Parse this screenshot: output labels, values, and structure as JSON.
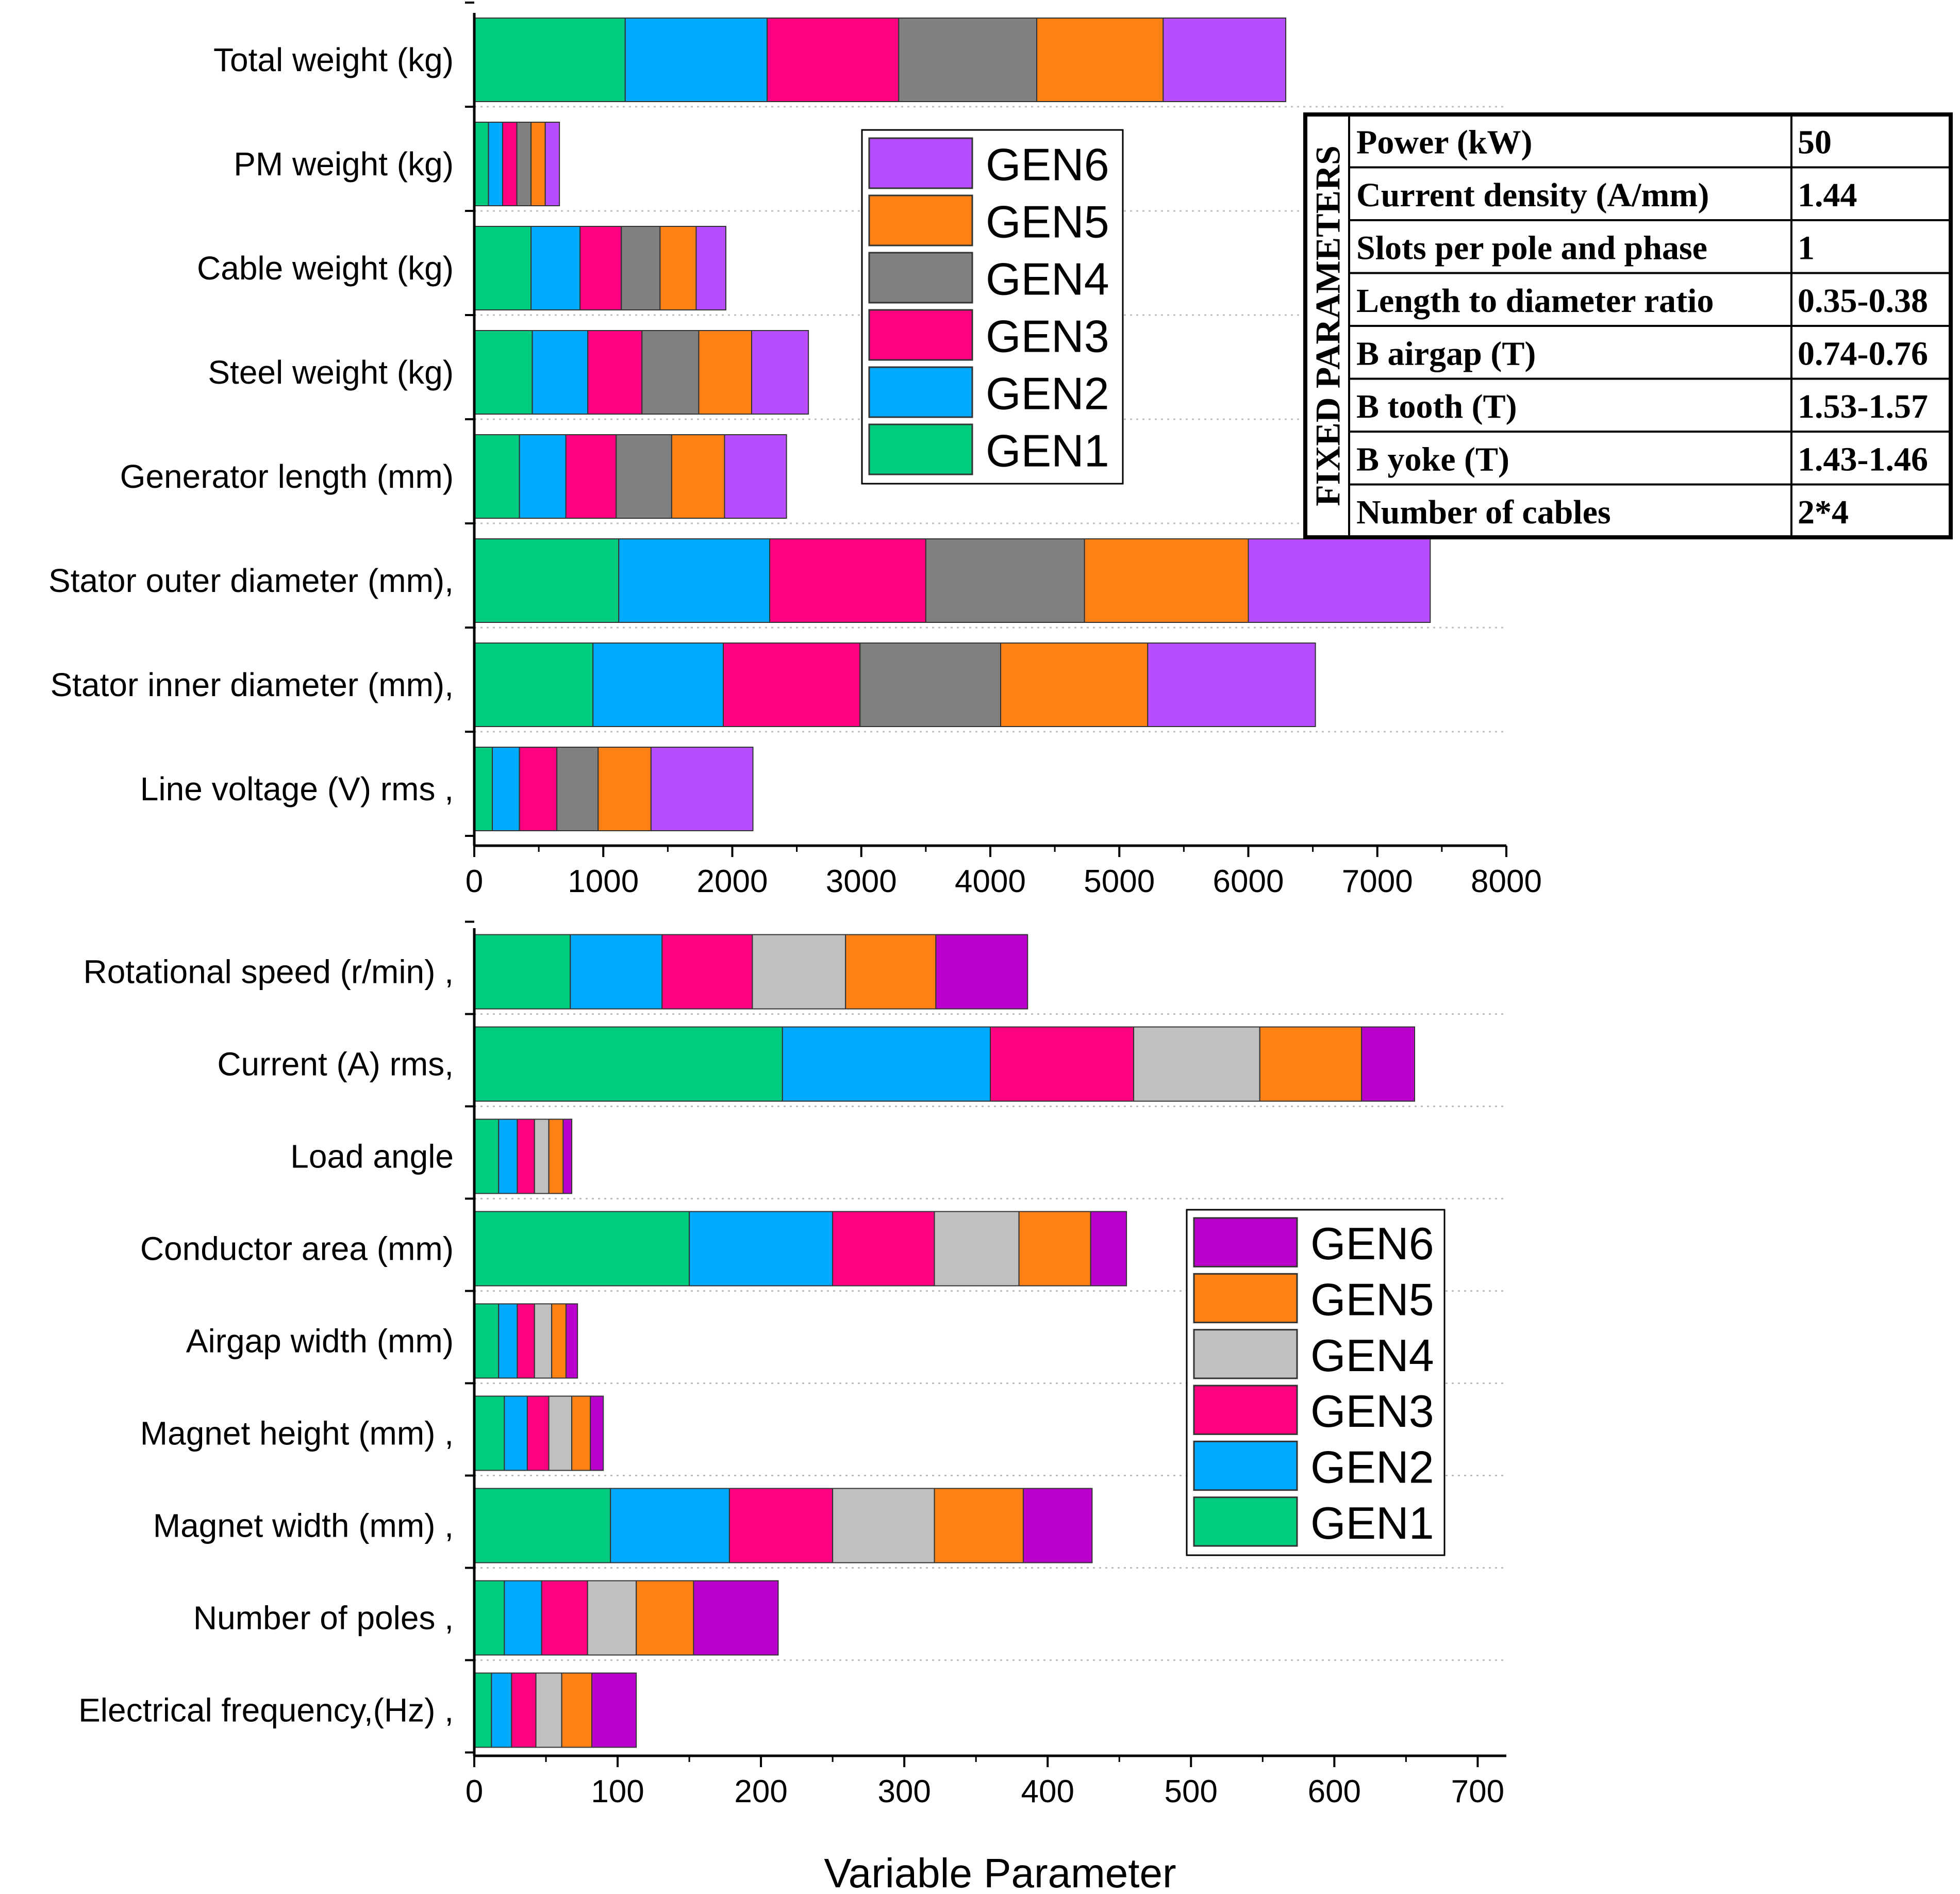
{
  "chart_data": [
    {
      "type": "bar",
      "stacked": true,
      "orientation": "horizontal",
      "categories": [
        "Total weight (kg)",
        "PM weight (kg)",
        "Cable weight (kg)",
        "Steel weight (kg)",
        "Generator length (mm)",
        "Stator outer diameter (mm),",
        "Stator inner diameter (mm),",
        "Line voltage (V) rms ,"
      ],
      "series": [
        {
          "name": "GEN1",
          "color": "#00cc7f",
          "values": [
            1170,
            110,
            440,
            450,
            350,
            1120,
            920,
            140
          ]
        },
        {
          "name": "GEN2",
          "color": "#00aaff",
          "values": [
            1100,
            110,
            380,
            430,
            360,
            1170,
            1010,
            210
          ]
        },
        {
          "name": "GEN3",
          "color": "#ff0080",
          "values": [
            1020,
            110,
            320,
            420,
            390,
            1210,
            1060,
            290
          ]
        },
        {
          "name": "GEN4",
          "color": "#808080",
          "values": [
            1070,
            110,
            300,
            440,
            430,
            1230,
            1090,
            320
          ]
        },
        {
          "name": "GEN5",
          "color": "#ff8015",
          "values": [
            980,
            110,
            280,
            410,
            410,
            1270,
            1140,
            410
          ]
        },
        {
          "name": "GEN6",
          "color": "#b84dff",
          "values": [
            950,
            110,
            230,
            440,
            480,
            1410,
            1300,
            790
          ]
        }
      ],
      "xticks": [
        "0",
        "1000",
        "2000",
        "3000",
        "4000",
        "5000",
        "6000",
        "7000",
        "8000"
      ],
      "xlim": [
        0,
        8000
      ],
      "legend": [
        "GEN6",
        "GEN5",
        "GEN4",
        "GEN3",
        "GEN2",
        "GEN1"
      ],
      "legend_position": "upper-middle",
      "grid": "dotted horizontal"
    },
    {
      "type": "bar",
      "stacked": true,
      "orientation": "horizontal",
      "categories": [
        "Rotational speed (r/min) ,",
        "Current (A) rms,",
        "Load angle",
        "Conductor area (mm)",
        "Airgap width (mm)",
        "Magnet height (mm) ,",
        "Magnet width (mm) ,",
        "Number of poles ,",
        "Electrical frequency,(Hz) ,"
      ],
      "series": [
        {
          "name": "GEN1",
          "color": "#00cc7f",
          "values": [
            67,
            215,
            17,
            150,
            17,
            21,
            95,
            21,
            12
          ]
        },
        {
          "name": "GEN2",
          "color": "#00aaff",
          "values": [
            64,
            145,
            13,
            100,
            13,
            16,
            83,
            26,
            14
          ]
        },
        {
          "name": "GEN3",
          "color": "#ff0080",
          "values": [
            63,
            100,
            12,
            71,
            12,
            15,
            72,
            32,
            17
          ]
        },
        {
          "name": "GEN4",
          "color": "#c0c0c0",
          "values": [
            65,
            88,
            10,
            59,
            12,
            16,
            71,
            34,
            18
          ]
        },
        {
          "name": "GEN5",
          "color": "#ff8015",
          "values": [
            63,
            71,
            10,
            50,
            10,
            13,
            62,
            40,
            21
          ]
        },
        {
          "name": "GEN6",
          "color": "#bb00cc",
          "values": [
            64,
            37,
            6,
            25,
            8,
            9,
            48,
            59,
            31
          ]
        }
      ],
      "xticks": [
        "0",
        "100",
        "200",
        "300",
        "400",
        "500",
        "600",
        "700"
      ],
      "xlim": [
        0,
        720
      ],
      "xlabel": "Variable Parameter",
      "legend": [
        "GEN6",
        "GEN5",
        "GEN4",
        "GEN3",
        "GEN2",
        "GEN1"
      ],
      "legend_position": "right-middle",
      "grid": "dotted horizontal"
    }
  ],
  "fixed_parameters_table": {
    "title": "FIXED PARAMETERS",
    "rows": [
      {
        "name": "Power (kW)",
        "value": "50"
      },
      {
        "name": "Current density (A/mm)",
        "value": "1.44"
      },
      {
        "name": "Slots per pole and phase",
        "value": "1"
      },
      {
        "name": "Length to diameter ratio",
        "value": "0.35-0.38"
      },
      {
        "name": "B airgap (T)",
        "value": "0.74-0.76"
      },
      {
        "name": " B tooth (T)",
        "value": "1.53-1.57"
      },
      {
        "name": "B yoke (T)",
        "value": "1.43-1.46"
      },
      {
        "name": "Number of cables",
        "value": "2*4"
      }
    ]
  }
}
